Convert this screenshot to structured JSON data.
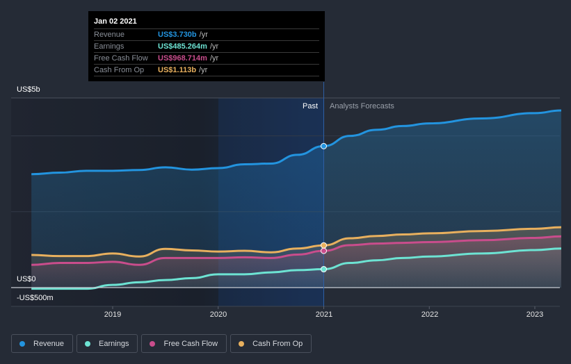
{
  "tooltip": {
    "date": "Jan 02 2021",
    "rows": [
      {
        "label": "Revenue",
        "value": "US$3.730b",
        "unit": "/yr",
        "color": "#2394df"
      },
      {
        "label": "Earnings",
        "value": "US$485.264m",
        "unit": "/yr",
        "color": "#6de3d3"
      },
      {
        "label": "Free Cash Flow",
        "value": "US$968.714m",
        "unit": "/yr",
        "color": "#c94d8c"
      },
      {
        "label": "Cash From Op",
        "value": "US$1.113b",
        "unit": "/yr",
        "color": "#e8b05e"
      }
    ]
  },
  "zones": {
    "past": "Past",
    "forecast": "Analysts Forecasts"
  },
  "legend": [
    {
      "label": "Revenue",
      "color": "#2394df"
    },
    {
      "label": "Earnings",
      "color": "#6de3d3"
    },
    {
      "label": "Free Cash Flow",
      "color": "#c94d8c"
    },
    {
      "label": "Cash From Op",
      "color": "#e8b05e"
    }
  ],
  "chart_data": {
    "type": "area",
    "title": "",
    "xlabel": "",
    "ylabel": "",
    "y_tick_labels": [
      "US$5b",
      "US$0",
      "-US$500m"
    ],
    "y_ticks": [
      5,
      0,
      -0.5
    ],
    "ylim": [
      -0.5,
      5
    ],
    "xlim": [
      2018.25,
      2023.25
    ],
    "x_tick_labels": [
      "2019",
      "2020",
      "2021",
      "2022",
      "2023"
    ],
    "x_ticks": [
      2019,
      2020,
      2021,
      2022,
      2023
    ],
    "grid": true,
    "legend_position": "bottom-left",
    "divider_x": 2021.0,
    "highlight_x": 2021.0,
    "units": "USD billions",
    "series": [
      {
        "name": "Revenue",
        "color": "#2394df",
        "x": [
          2018.23,
          2018.5,
          2018.75,
          2019.0,
          2019.25,
          2019.5,
          2019.75,
          2020.0,
          2020.25,
          2020.5,
          2020.75,
          2021.0,
          2021.25,
          2021.5,
          2021.75,
          2022.0,
          2022.5,
          2023.0,
          2023.25
        ],
        "y": [
          2.99,
          3.03,
          3.08,
          3.08,
          3.1,
          3.17,
          3.11,
          3.15,
          3.25,
          3.27,
          3.5,
          3.73,
          4.0,
          4.16,
          4.26,
          4.33,
          4.46,
          4.6,
          4.67
        ]
      },
      {
        "name": "Earnings",
        "color": "#6de3d3",
        "x": [
          2018.23,
          2018.5,
          2018.75,
          2019.0,
          2019.25,
          2019.5,
          2019.75,
          2020.0,
          2020.25,
          2020.5,
          2020.75,
          2021.0,
          2021.25,
          2021.5,
          2021.75,
          2022.0,
          2022.5,
          2023.0,
          2023.25
        ],
        "y": [
          -0.03,
          -0.03,
          -0.03,
          0.07,
          0.14,
          0.2,
          0.25,
          0.35,
          0.35,
          0.4,
          0.46,
          0.485,
          0.65,
          0.72,
          0.78,
          0.82,
          0.9,
          0.99,
          1.03
        ]
      },
      {
        "name": "Free Cash Flow",
        "color": "#c94d8c",
        "x": [
          2018.23,
          2018.5,
          2018.75,
          2019.0,
          2019.25,
          2019.5,
          2019.75,
          2020.0,
          2020.25,
          2020.5,
          2020.75,
          2021.0,
          2021.25,
          2021.5,
          2021.75,
          2022.0,
          2022.5,
          2023.0,
          2023.25
        ],
        "y": [
          0.6,
          0.65,
          0.65,
          0.68,
          0.6,
          0.78,
          0.78,
          0.78,
          0.8,
          0.78,
          0.87,
          0.969,
          1.12,
          1.16,
          1.18,
          1.2,
          1.25,
          1.31,
          1.35
        ]
      },
      {
        "name": "Cash From Op",
        "color": "#e8b05e",
        "x": [
          2018.23,
          2018.5,
          2018.75,
          2019.0,
          2019.25,
          2019.5,
          2019.75,
          2020.0,
          2020.25,
          2020.5,
          2020.75,
          2021.0,
          2021.25,
          2021.5,
          2021.75,
          2022.0,
          2022.5,
          2023.0,
          2023.25
        ],
        "y": [
          0.86,
          0.83,
          0.83,
          0.9,
          0.82,
          1.02,
          0.98,
          0.95,
          0.97,
          0.93,
          1.03,
          1.113,
          1.3,
          1.36,
          1.4,
          1.43,
          1.49,
          1.55,
          1.59
        ]
      }
    ]
  }
}
